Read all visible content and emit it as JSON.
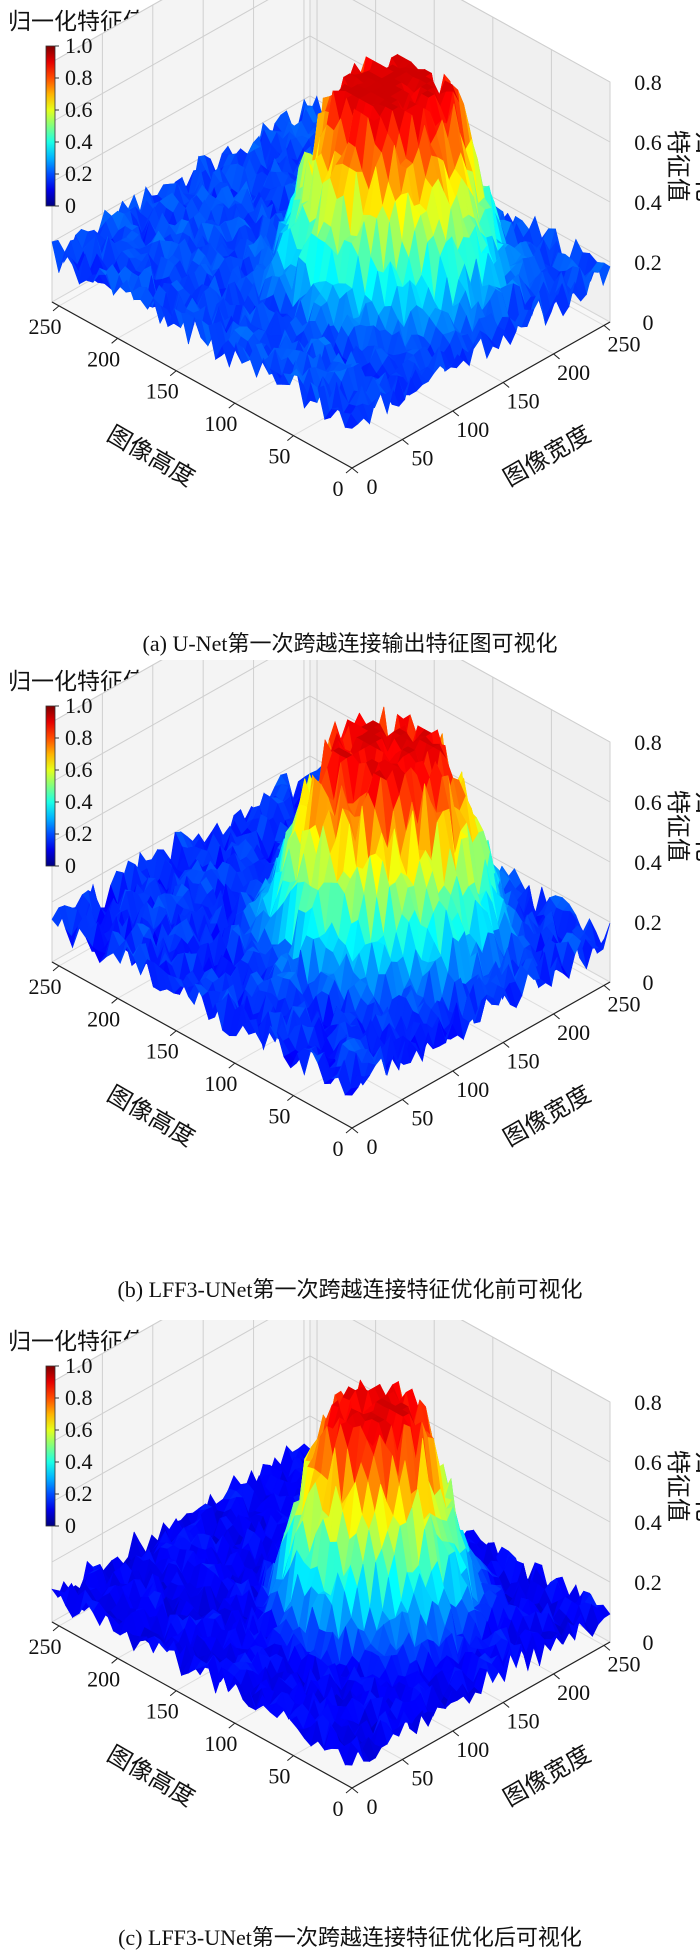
{
  "panels": [
    {
      "colorbar_title": "归一化特征值",
      "caption": "(a) U-Net第一次跨越连接输出特征图可视化",
      "chart_data": {
        "type": "surface3d",
        "colormap": "jet",
        "colorbar": {
          "ticks": [
            "1.0",
            "0.8",
            "0.6",
            "0.4",
            "0.2",
            "0"
          ],
          "range": [
            0,
            1
          ]
        },
        "x_axis": {
          "label": "图像高度",
          "ticks": [
            "0",
            "50",
            "100",
            "150",
            "200",
            "250"
          ],
          "range": [
            0,
            256
          ]
        },
        "y_axis": {
          "label": "图像宽度",
          "ticks": [
            "0",
            "50",
            "100",
            "150",
            "200",
            "250"
          ],
          "range": [
            0,
            256
          ]
        },
        "z_axis": {
          "label": "归一化特征值",
          "ticks": [
            "0",
            "0.2",
            "0.4",
            "0.6",
            "0.8"
          ],
          "range": [
            0,
            0.8
          ]
        },
        "peak": {
          "center": [
            95,
            150
          ],
          "height": 0.68,
          "spread": 58
        },
        "background_level": 0.16,
        "noise": 0.09,
        "seed": 11
      }
    },
    {
      "colorbar_title": "归一化特征值",
      "caption": "(b) LFF3-UNet第一次跨越连接特征优化前可视化",
      "chart_data": {
        "type": "surface3d",
        "colormap": "jet",
        "colorbar": {
          "ticks": [
            "1.0",
            "0.8",
            "0.6",
            "0.4",
            "0.2",
            "0"
          ],
          "range": [
            0,
            1
          ]
        },
        "x_axis": {
          "label": "图像高度",
          "ticks": [
            "0",
            "50",
            "100",
            "150",
            "200",
            "250"
          ],
          "range": [
            0,
            256
          ]
        },
        "y_axis": {
          "label": "图像宽度",
          "ticks": [
            "0",
            "50",
            "100",
            "150",
            "200",
            "250"
          ],
          "range": [
            0,
            256
          ]
        },
        "z_axis": {
          "label": "归一化特征值",
          "ticks": [
            "0",
            "0.2",
            "0.4",
            "0.6",
            "0.8"
          ],
          "range": [
            0,
            0.8
          ]
        },
        "peak": {
          "center": [
            100,
            150
          ],
          "height": 0.66,
          "spread": 62
        },
        "background_level": 0.14,
        "noise": 0.1,
        "seed": 23
      }
    },
    {
      "colorbar_title": "归一化特征值",
      "caption": "(c) LFF3-UNet第一次跨越连接特征优化后可视化",
      "chart_data": {
        "type": "surface3d",
        "colormap": "jet",
        "colorbar": {
          "ticks": [
            "1.0",
            "0.8",
            "0.6",
            "0.4",
            "0.2",
            "0"
          ],
          "range": [
            0,
            1
          ]
        },
        "x_axis": {
          "label": "图像高度",
          "ticks": [
            "0",
            "50",
            "100",
            "150",
            "200",
            "250"
          ],
          "range": [
            0,
            256
          ]
        },
        "y_axis": {
          "label": "图像宽度",
          "ticks": [
            "0",
            "50",
            "100",
            "150",
            "200",
            "250"
          ],
          "range": [
            0,
            256
          ]
        },
        "z_axis": {
          "label": "归一化特征值",
          "ticks": [
            "0",
            "0.2",
            "0.4",
            "0.6",
            "0.8"
          ],
          "range": [
            0,
            0.8
          ]
        },
        "peak": {
          "center": [
            105,
            145
          ],
          "height": 0.7,
          "spread": 52
        },
        "background_level": 0.1,
        "noise": 0.08,
        "seed": 37
      }
    }
  ]
}
